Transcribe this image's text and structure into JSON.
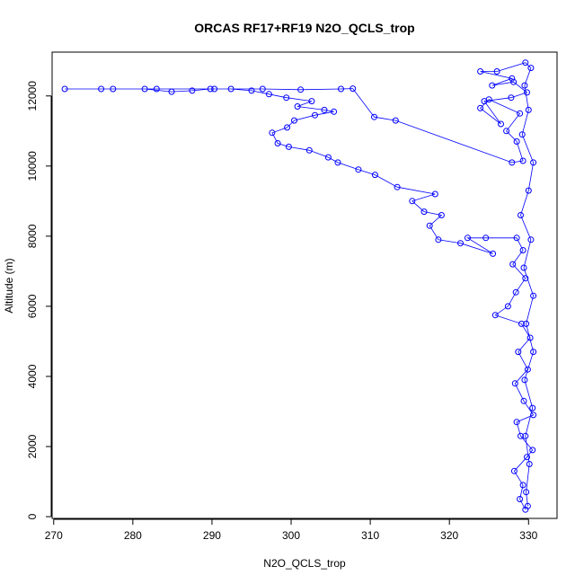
{
  "chart_data": {
    "type": "scatter",
    "title": "ORCAS RF17+RF19 N2O_QCLS_trop",
    "xlabel": "N2O_QCLS_trop",
    "ylabel": "Altitude (m)",
    "xlim": [
      269.8,
      333.6
    ],
    "ylim": [
      -50,
      13250
    ],
    "xticks": [
      270,
      280,
      290,
      300,
      310,
      320,
      330
    ],
    "yticks": [
      0,
      2000,
      4000,
      6000,
      8000,
      10000,
      12000
    ],
    "marker": "open-circle",
    "line_connected": true,
    "colors": {
      "series": "#0000ff",
      "axis": "#000000",
      "background": "#ffffff"
    },
    "series": [
      {
        "values": [
          [
            329.6,
            200
          ],
          [
            328.9,
            500
          ],
          [
            329.3,
            900
          ],
          [
            328.2,
            1300
          ],
          [
            329.8,
            1700
          ],
          [
            330.5,
            1900
          ],
          [
            329.0,
            2300
          ],
          [
            328.5,
            2700
          ],
          [
            330.6,
            2900
          ],
          [
            329.4,
            3300
          ],
          [
            328.3,
            3800
          ],
          [
            329.9,
            4200
          ],
          [
            328.7,
            4700
          ],
          [
            330.2,
            5100
          ],
          [
            329.1,
            5500
          ],
          [
            325.8,
            5750
          ],
          [
            327.4,
            6000
          ],
          [
            328.4,
            6400
          ],
          [
            329.6,
            6800
          ],
          [
            328.0,
            7200
          ],
          [
            329.3,
            7600
          ],
          [
            328.5,
            7950
          ],
          [
            324.6,
            7950
          ],
          [
            322.3,
            7950
          ],
          [
            325.5,
            7500
          ],
          [
            321.4,
            7800
          ],
          [
            318.6,
            7900
          ],
          [
            317.5,
            8300
          ],
          [
            319.0,
            8600
          ],
          [
            316.8,
            8700
          ],
          [
            315.3,
            9000
          ],
          [
            318.2,
            9200
          ],
          [
            313.4,
            9400
          ],
          [
            310.6,
            9750
          ],
          [
            308.5,
            9900
          ],
          [
            305.9,
            10100
          ],
          [
            304.7,
            10250
          ],
          [
            302.3,
            10450
          ],
          [
            299.7,
            10550
          ],
          [
            298.3,
            10650
          ],
          [
            297.6,
            10950
          ],
          [
            299.5,
            11100
          ],
          [
            300.4,
            11300
          ],
          [
            303.0,
            11450
          ],
          [
            305.4,
            11550
          ],
          [
            304.2,
            11600
          ],
          [
            300.8,
            11700
          ],
          [
            302.6,
            11850
          ],
          [
            299.4,
            11950
          ],
          [
            297.2,
            12050
          ],
          [
            295.0,
            12150
          ],
          [
            292.4,
            12200
          ],
          [
            289.8,
            12200
          ],
          [
            287.5,
            12150
          ],
          [
            284.9,
            12120
          ],
          [
            281.5,
            12200
          ],
          [
            277.5,
            12200
          ],
          [
            271.4,
            12200
          ],
          [
            276.0,
            12200
          ],
          [
            283.0,
            12200
          ],
          [
            290.3,
            12200
          ],
          [
            296.4,
            12200
          ],
          [
            301.2,
            12180
          ],
          [
            306.3,
            12200
          ],
          [
            307.8,
            12210
          ],
          [
            310.5,
            11400
          ],
          [
            313.2,
            11300
          ],
          [
            327.9,
            10100
          ],
          [
            329.3,
            10150
          ],
          [
            328.5,
            10700
          ],
          [
            327.2,
            11000
          ],
          [
            328.9,
            11500
          ],
          [
            325.0,
            11900
          ],
          [
            323.9,
            11650
          ],
          [
            326.5,
            11200
          ],
          [
            324.4,
            11850
          ],
          [
            327.8,
            11950
          ],
          [
            329.8,
            12100
          ],
          [
            328.1,
            12400
          ],
          [
            325.4,
            12300
          ],
          [
            327.9,
            12500
          ],
          [
            323.9,
            12700
          ],
          [
            326.0,
            12700
          ],
          [
            329.6,
            12950
          ],
          [
            330.3,
            12800
          ],
          [
            329.5,
            12300
          ],
          [
            330.0,
            11600
          ],
          [
            329.2,
            10900
          ],
          [
            330.6,
            10100
          ],
          [
            330.0,
            9300
          ],
          [
            329.0,
            8600
          ],
          [
            330.3,
            7900
          ],
          [
            329.4,
            7100
          ],
          [
            330.6,
            6300
          ],
          [
            329.7,
            5500
          ],
          [
            330.6,
            4700
          ],
          [
            329.5,
            3900
          ],
          [
            330.5,
            3100
          ],
          [
            329.6,
            2300
          ],
          [
            330.1,
            1500
          ],
          [
            329.7,
            700
          ],
          [
            329.9,
            300
          ]
        ]
      }
    ]
  }
}
